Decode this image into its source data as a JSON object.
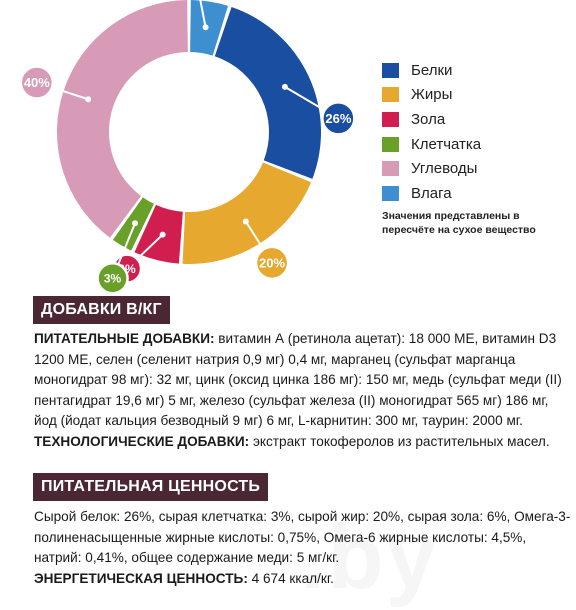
{
  "chart_data": {
    "type": "pie",
    "donut": true,
    "categories": [
      "Белки",
      "Жиры",
      "Зола",
      "Клетчатка",
      "Углеводы",
      "Влага"
    ],
    "values": [
      26,
      20,
      6,
      3,
      40,
      5
    ],
    "value_labels": [
      "26%",
      "20%",
      "6%",
      "3%",
      "40%",
      "5%"
    ],
    "colors": [
      "#1a4ea0",
      "#e6a82e",
      "#d01f4f",
      "#68a02a",
      "#d79bb7",
      "#3d8fd0"
    ],
    "legend": "right",
    "note": "Значения представлены в пересчёте на сухое вещество"
  },
  "sections": {
    "additives": {
      "title": "ДОБАВКИ В/КГ",
      "nutritional_label": "ПИТАТЕЛЬНЫЕ ДОБАВКИ:",
      "nutritional_text": " витамин А (ретинола ацетат): 18 000 МЕ, витамин D3 1200 МЕ, селен (селенит натрия 0,9 мг) 0,4 мг, марганец (сульфат марганца моногидрат 98 мг): 32 мг, цинк (оксид цинка 186 мг): 150 мг, медь (сульфат меди (II) пентагидрат 19,6 мг) 5 мг, железо (сульфат железа (II) моногидрат 565 мг) 186 мг, йод (йодат кальция безводный 9 мг) 6 мг, L-карнитин: 300 мг, таурин: 2000 мг.",
      "technological_label": "ТЕХНОЛОГИЧЕСКИЕ ДОБАВКИ:",
      "technological_text": " экстракт токоферолов из растительных масел."
    },
    "nutrition": {
      "title": "ПИТАТЕЛЬНАЯ ЦЕННОСТЬ",
      "text": "Сырой белок: 26%, сырая клетчатка: 3%, сырой жир: 20%, сырая зола: 6%, Омега-3-полиненасыщенные жирные кислоты: 0,75%, Омега-6 жирные кислоты: 4,5%, натрий: 0,41%, общее содержание меди: 5 мг/кг.",
      "energy_label": "ЭНЕРГЕТИЧЕСКАЯ ЦЕННОСТЬ:",
      "energy_text": " 4 674 ккал/кг."
    }
  }
}
